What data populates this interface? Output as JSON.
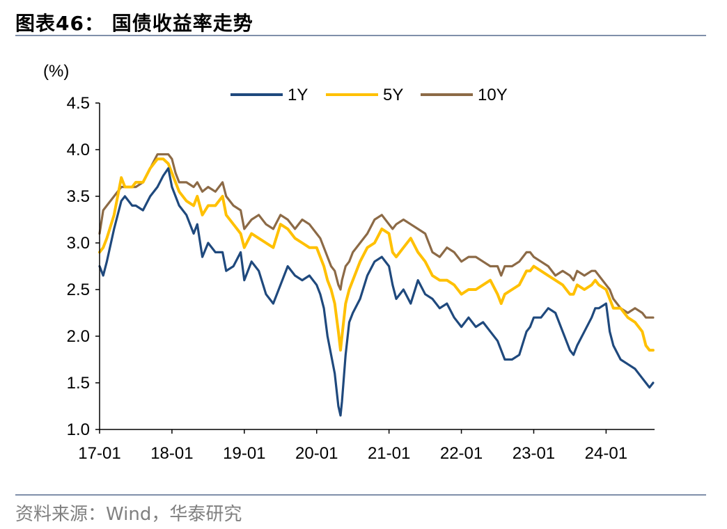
{
  "header": {
    "title": "图表46： 国债收益率走势"
  },
  "footer": {
    "source": "资料来源：Wind，华泰研究"
  },
  "colors": {
    "1Y": "#1f497d",
    "5Y": "#ffc000",
    "10Y": "#8c6a46",
    "axis": "#000000",
    "rule": "#7f8fa9"
  },
  "chart_data": {
    "type": "line",
    "ylabel": "(%)",
    "ylim": [
      1.0,
      4.5
    ],
    "yticks": [
      "1.0",
      "1.5",
      "2.0",
      "2.5",
      "3.0",
      "3.5",
      "4.0",
      "4.5"
    ],
    "xticks": [
      "17-01",
      "18-01",
      "19-01",
      "20-01",
      "21-01",
      "22-01",
      "23-01",
      "24-01"
    ],
    "xlim": [
      2017.0,
      2024.67
    ],
    "grid": false,
    "legend": "top",
    "series": [
      {
        "name": "1Y",
        "x": [
          2017.0,
          2017.05,
          2017.1,
          2017.2,
          2017.3,
          2017.35,
          2017.45,
          2017.5,
          2017.6,
          2017.7,
          2017.8,
          2017.88,
          2017.95,
          2018.0,
          2018.05,
          2018.1,
          2018.2,
          2018.3,
          2018.35,
          2018.42,
          2018.5,
          2018.6,
          2018.7,
          2018.75,
          2018.85,
          2018.95,
          2019.0,
          2019.1,
          2019.2,
          2019.3,
          2019.4,
          2019.5,
          2019.6,
          2019.7,
          2019.8,
          2019.9,
          2020.0,
          2020.05,
          2020.1,
          2020.15,
          2020.2,
          2020.25,
          2020.3,
          2020.33,
          2020.35,
          2020.4,
          2020.45,
          2020.5,
          2020.6,
          2020.7,
          2020.8,
          2020.9,
          2021.0,
          2021.05,
          2021.1,
          2021.2,
          2021.3,
          2021.4,
          2021.5,
          2021.6,
          2021.7,
          2021.8,
          2021.9,
          2022.0,
          2022.1,
          2022.2,
          2022.3,
          2022.4,
          2022.5,
          2022.55,
          2022.6,
          2022.7,
          2022.8,
          2022.9,
          2022.95,
          2023.0,
          2023.1,
          2023.2,
          2023.3,
          2023.4,
          2023.5,
          2023.55,
          2023.6,
          2023.7,
          2023.8,
          2023.85,
          2023.9,
          2024.0,
          2024.05,
          2024.1,
          2024.2,
          2024.3,
          2024.4,
          2024.5,
          2024.55,
          2024.6,
          2024.65
        ],
        "values": [
          2.75,
          2.65,
          2.8,
          3.15,
          3.45,
          3.5,
          3.4,
          3.4,
          3.35,
          3.5,
          3.6,
          3.72,
          3.8,
          3.6,
          3.5,
          3.4,
          3.3,
          3.1,
          3.2,
          2.85,
          3.0,
          2.9,
          2.9,
          2.7,
          2.75,
          2.9,
          2.6,
          2.8,
          2.7,
          2.45,
          2.35,
          2.55,
          2.75,
          2.65,
          2.6,
          2.65,
          2.55,
          2.45,
          2.3,
          2.0,
          1.8,
          1.6,
          1.25,
          1.15,
          1.3,
          1.8,
          2.15,
          2.25,
          2.4,
          2.65,
          2.8,
          2.85,
          2.75,
          2.55,
          2.4,
          2.5,
          2.35,
          2.6,
          2.45,
          2.4,
          2.3,
          2.35,
          2.2,
          2.1,
          2.2,
          2.1,
          2.15,
          2.05,
          1.95,
          1.85,
          1.75,
          1.75,
          1.8,
          2.05,
          2.1,
          2.2,
          2.2,
          2.3,
          2.25,
          2.05,
          1.85,
          1.8,
          1.9,
          2.05,
          2.2,
          2.3,
          2.3,
          2.35,
          2.05,
          1.9,
          1.75,
          1.7,
          1.65,
          1.55,
          1.5,
          1.45,
          1.5
        ]
      },
      {
        "name": "5Y",
        "x": [
          2017.0,
          2017.05,
          2017.1,
          2017.2,
          2017.3,
          2017.35,
          2017.45,
          2017.5,
          2017.6,
          2017.7,
          2017.8,
          2017.88,
          2017.95,
          2018.0,
          2018.05,
          2018.1,
          2018.2,
          2018.3,
          2018.35,
          2018.42,
          2018.5,
          2018.6,
          2018.7,
          2018.75,
          2018.85,
          2018.95,
          2019.0,
          2019.1,
          2019.2,
          2019.3,
          2019.4,
          2019.5,
          2019.6,
          2019.7,
          2019.8,
          2019.9,
          2020.0,
          2020.05,
          2020.1,
          2020.15,
          2020.2,
          2020.25,
          2020.3,
          2020.33,
          2020.35,
          2020.4,
          2020.45,
          2020.5,
          2020.6,
          2020.7,
          2020.8,
          2020.9,
          2021.0,
          2021.05,
          2021.1,
          2021.2,
          2021.3,
          2021.4,
          2021.5,
          2021.6,
          2021.7,
          2021.8,
          2021.9,
          2022.0,
          2022.1,
          2022.2,
          2022.3,
          2022.4,
          2022.5,
          2022.55,
          2022.6,
          2022.7,
          2022.8,
          2022.9,
          2022.95,
          2023.0,
          2023.1,
          2023.2,
          2023.3,
          2023.4,
          2023.5,
          2023.55,
          2023.6,
          2023.7,
          2023.8,
          2023.85,
          2023.9,
          2024.0,
          2024.05,
          2024.1,
          2024.2,
          2024.3,
          2024.4,
          2024.5,
          2024.55,
          2024.6,
          2024.65
        ],
        "values": [
          2.9,
          2.95,
          3.05,
          3.3,
          3.7,
          3.6,
          3.6,
          3.65,
          3.65,
          3.8,
          3.9,
          3.9,
          3.85,
          3.75,
          3.65,
          3.55,
          3.45,
          3.4,
          3.5,
          3.3,
          3.4,
          3.4,
          3.5,
          3.3,
          3.2,
          3.1,
          2.95,
          3.1,
          3.05,
          3.0,
          2.95,
          3.2,
          3.15,
          3.05,
          3.0,
          2.95,
          2.95,
          2.85,
          2.75,
          2.6,
          2.5,
          2.35,
          2.05,
          1.85,
          2.0,
          2.35,
          2.5,
          2.6,
          2.8,
          2.95,
          3.0,
          3.15,
          3.1,
          2.9,
          2.85,
          2.95,
          3.05,
          2.9,
          2.8,
          2.65,
          2.6,
          2.6,
          2.55,
          2.45,
          2.5,
          2.5,
          2.55,
          2.6,
          2.45,
          2.35,
          2.45,
          2.5,
          2.55,
          2.7,
          2.7,
          2.75,
          2.7,
          2.65,
          2.6,
          2.55,
          2.45,
          2.45,
          2.55,
          2.5,
          2.55,
          2.6,
          2.55,
          2.5,
          2.4,
          2.3,
          2.3,
          2.2,
          2.15,
          2.05,
          1.9,
          1.85,
          1.85
        ]
      },
      {
        "name": "10Y",
        "x": [
          2017.0,
          2017.05,
          2017.1,
          2017.2,
          2017.3,
          2017.35,
          2017.45,
          2017.5,
          2017.6,
          2017.7,
          2017.8,
          2017.88,
          2017.95,
          2018.0,
          2018.05,
          2018.1,
          2018.2,
          2018.3,
          2018.35,
          2018.42,
          2018.5,
          2018.6,
          2018.7,
          2018.75,
          2018.85,
          2018.95,
          2019.0,
          2019.1,
          2019.2,
          2019.3,
          2019.4,
          2019.5,
          2019.6,
          2019.7,
          2019.8,
          2019.9,
          2020.0,
          2020.05,
          2020.1,
          2020.15,
          2020.2,
          2020.25,
          2020.3,
          2020.33,
          2020.35,
          2020.4,
          2020.45,
          2020.5,
          2020.6,
          2020.7,
          2020.8,
          2020.9,
          2021.0,
          2021.05,
          2021.1,
          2021.2,
          2021.3,
          2021.4,
          2021.5,
          2021.6,
          2021.7,
          2021.8,
          2021.9,
          2022.0,
          2022.1,
          2022.2,
          2022.3,
          2022.4,
          2022.5,
          2022.55,
          2022.6,
          2022.7,
          2022.8,
          2022.9,
          2022.95,
          2023.0,
          2023.1,
          2023.2,
          2023.3,
          2023.4,
          2023.5,
          2023.55,
          2023.6,
          2023.7,
          2023.8,
          2023.85,
          2023.9,
          2024.0,
          2024.05,
          2024.1,
          2024.2,
          2024.3,
          2024.4,
          2024.5,
          2024.55,
          2024.6,
          2024.65
        ],
        "values": [
          3.1,
          3.35,
          3.4,
          3.5,
          3.6,
          3.6,
          3.6,
          3.6,
          3.65,
          3.8,
          3.95,
          3.95,
          3.95,
          3.9,
          3.75,
          3.65,
          3.65,
          3.6,
          3.65,
          3.55,
          3.6,
          3.55,
          3.65,
          3.5,
          3.4,
          3.35,
          3.15,
          3.25,
          3.3,
          3.2,
          3.15,
          3.3,
          3.25,
          3.15,
          3.25,
          3.2,
          3.1,
          3.05,
          2.95,
          2.85,
          2.75,
          2.7,
          2.55,
          2.5,
          2.6,
          2.75,
          2.8,
          2.9,
          3.0,
          3.1,
          3.25,
          3.3,
          3.2,
          3.15,
          3.2,
          3.25,
          3.2,
          3.15,
          3.1,
          2.9,
          2.85,
          2.95,
          2.9,
          2.8,
          2.85,
          2.85,
          2.8,
          2.75,
          2.75,
          2.65,
          2.75,
          2.75,
          2.8,
          2.9,
          2.9,
          2.85,
          2.8,
          2.75,
          2.65,
          2.7,
          2.65,
          2.6,
          2.7,
          2.65,
          2.7,
          2.7,
          2.65,
          2.55,
          2.5,
          2.4,
          2.3,
          2.25,
          2.3,
          2.25,
          2.2,
          2.2,
          2.2
        ]
      }
    ]
  }
}
